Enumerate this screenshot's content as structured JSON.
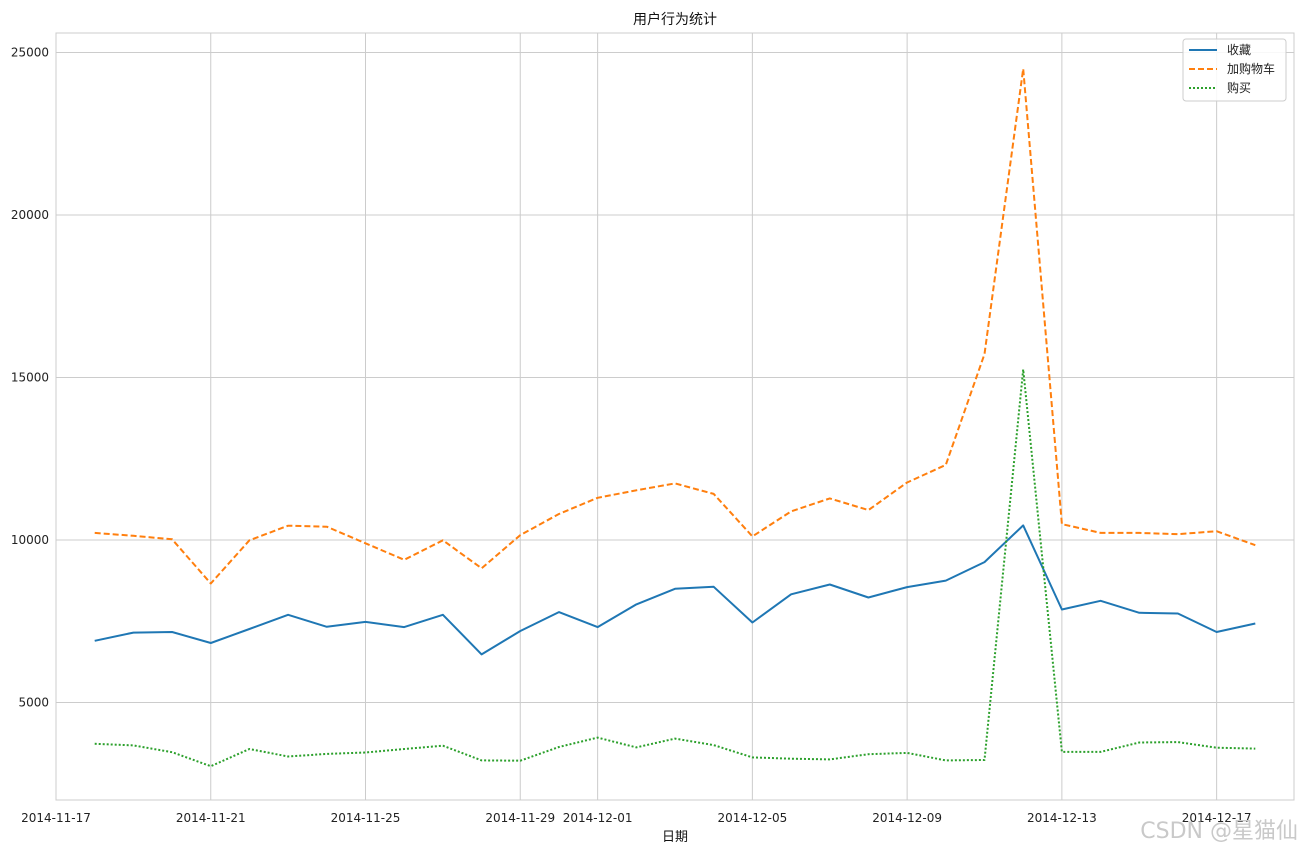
{
  "chart_data": {
    "type": "line",
    "title": "用户行为统计",
    "xlabel": "日期",
    "ylabel": "",
    "x": [
      "2014-11-18",
      "2014-11-19",
      "2014-11-20",
      "2014-11-21",
      "2014-11-22",
      "2014-11-23",
      "2014-11-24",
      "2014-11-25",
      "2014-11-26",
      "2014-11-27",
      "2014-11-28",
      "2014-11-29",
      "2014-11-30",
      "2014-12-01",
      "2014-12-02",
      "2014-12-03",
      "2014-12-04",
      "2014-12-05",
      "2014-12-06",
      "2014-12-07",
      "2014-12-08",
      "2014-12-09",
      "2014-12-10",
      "2014-12-11",
      "2014-12-12",
      "2014-12-13",
      "2014-12-14",
      "2014-12-15",
      "2014-12-16",
      "2014-12-17",
      "2014-12-18"
    ],
    "xlim": [
      "2014-11-17",
      "2014-12-19"
    ],
    "x_ticks": [
      "2014-11-17",
      "2014-11-21",
      "2014-11-25",
      "2014-11-29",
      "2014-12-01",
      "2014-12-05",
      "2014-12-09",
      "2014-12-13",
      "2014-12-17"
    ],
    "ylim": [
      2000,
      25600
    ],
    "y_ticks": [
      5000,
      10000,
      15000,
      20000,
      25000
    ],
    "grid": true,
    "legend_position": "top-right",
    "series": [
      {
        "name": "收藏",
        "color": "#1f77b4",
        "style": "solid",
        "values": [
          6900,
          7150,
          7170,
          6830,
          7260,
          7700,
          7330,
          7480,
          7320,
          7700,
          6480,
          7200,
          7780,
          7320,
          8020,
          8500,
          8560,
          7460,
          8330,
          8630,
          8230,
          8550,
          8750,
          9320,
          10450,
          7860,
          8130,
          7760,
          7740,
          7170,
          7430
        ]
      },
      {
        "name": "加购物车",
        "color": "#ff7f0e",
        "style": "dashed",
        "values": [
          10220,
          10130,
          10020,
          8660,
          9990,
          10440,
          10410,
          9900,
          9390,
          9990,
          9130,
          10150,
          10800,
          11300,
          11530,
          11740,
          11420,
          10110,
          10880,
          11280,
          10920,
          11770,
          12310,
          15720,
          24500,
          10490,
          10220,
          10220,
          10180,
          10270,
          9840
        ]
      },
      {
        "name": "购买",
        "color": "#2ca02c",
        "style": "dotted",
        "values": [
          3730,
          3680,
          3470,
          3040,
          3570,
          3340,
          3420,
          3460,
          3570,
          3670,
          3220,
          3210,
          3630,
          3920,
          3620,
          3890,
          3690,
          3310,
          3270,
          3250,
          3410,
          3450,
          3220,
          3230,
          15250,
          3480,
          3480,
          3770,
          3780,
          3610,
          3580
        ]
      }
    ]
  },
  "watermark": "CSDN @星猫仙"
}
